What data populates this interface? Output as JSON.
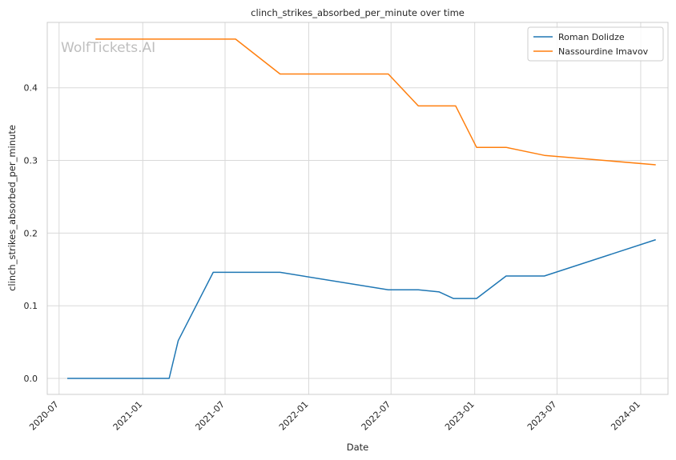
{
  "chart_data": {
    "type": "line",
    "title": "clinch_strikes_absorbed_per_minute over time",
    "xlabel": "Date",
    "ylabel": "clinch_strikes_absorbed_per_minute",
    "watermark": "WolfTickets.AI",
    "x_ticks": [
      "2020-07",
      "2021-01",
      "2021-07",
      "2022-01",
      "2022-07",
      "2023-01",
      "2023-07",
      "2024-01"
    ],
    "y_ticks": [
      "0.0",
      "0.1",
      "0.2",
      "0.3",
      "0.4"
    ],
    "ylim": [
      -0.022,
      0.49
    ],
    "xlim": [
      "2020-06-05",
      "2024-03-01"
    ],
    "grid": true,
    "legend_position": "top-right",
    "series": [
      {
        "name": "Roman Dolidze",
        "color": "#1f77b4",
        "points": [
          [
            "2020-07-19",
            0.0
          ],
          [
            "2021-02-28",
            0.0
          ],
          [
            "2021-03-20",
            0.052
          ],
          [
            "2021-06-05",
            0.146
          ],
          [
            "2021-10-30",
            0.146
          ],
          [
            "2022-06-25",
            0.122
          ],
          [
            "2022-08-30",
            0.122
          ],
          [
            "2022-10-15",
            0.119
          ],
          [
            "2022-11-15",
            0.11
          ],
          [
            "2023-01-05",
            0.11
          ],
          [
            "2023-03-11",
            0.141
          ],
          [
            "2023-06-03",
            0.141
          ],
          [
            "2024-02-03",
            0.191
          ]
        ]
      },
      {
        "name": "Nassourdine Imavov",
        "color": "#ff7f0e",
        "points": [
          [
            "2020-09-19",
            0.467
          ],
          [
            "2021-07-24",
            0.467
          ],
          [
            "2021-10-30",
            0.419
          ],
          [
            "2022-06-25",
            0.419
          ],
          [
            "2022-08-30",
            0.375
          ],
          [
            "2022-11-20",
            0.375
          ],
          [
            "2023-01-05",
            0.318
          ],
          [
            "2023-03-11",
            0.318
          ],
          [
            "2023-06-03",
            0.307
          ],
          [
            "2024-02-03",
            0.294
          ]
        ]
      }
    ]
  }
}
